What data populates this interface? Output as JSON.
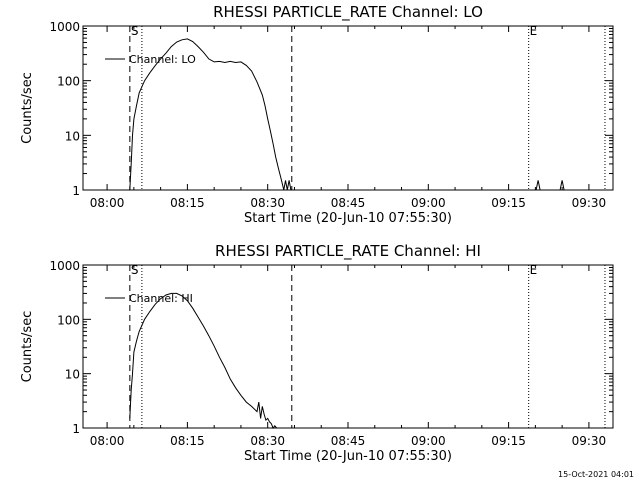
{
  "chart_data": [
    {
      "type": "line",
      "title": "RHESSI PARTICLE_RATE Channel: LO",
      "xlabel": "Start Time (20-Jun-10 07:55:30)",
      "ylabel": "Counts/sec",
      "yscale": "log",
      "ylim": [
        1,
        1000
      ],
      "xlim": [
        "07:55:30",
        "09:34:30"
      ],
      "x_ticks": [
        "08:00",
        "08:15",
        "08:30",
        "08:45",
        "09:00",
        "09:15",
        "09:30"
      ],
      "y_ticks": [
        "1",
        "10",
        "100",
        "1000"
      ],
      "legend": "top-left",
      "markers": [
        {
          "label": "S",
          "time": "08:04:15",
          "style": "dashed"
        },
        {
          "label": "",
          "time": "08:06:30",
          "style": "dotted"
        },
        {
          "label": "",
          "time": "08:34:30",
          "style": "dashed"
        },
        {
          "label": "E",
          "time": "09:18:45",
          "style": "dotted"
        },
        {
          "label": "",
          "time": "09:33:00",
          "style": "dotted"
        }
      ],
      "series": [
        {
          "name": "Channel: LO",
          "x": [
            "08:04:15",
            "08:04:30",
            "08:04:45",
            "08:05:00",
            "08:05:30",
            "08:06:00",
            "08:07:00",
            "08:08:00",
            "08:09:00",
            "08:10:00",
            "08:11:00",
            "08:12:00",
            "08:13:00",
            "08:14:00",
            "08:15:00",
            "08:16:00",
            "08:17:00",
            "08:18:00",
            "08:19:00",
            "08:20:00",
            "08:21:00",
            "08:22:00",
            "08:23:00",
            "08:24:00",
            "08:25:00",
            "08:26:00",
            "08:27:00",
            "08:28:00",
            "08:29:00",
            "08:29:30",
            "08:30:00",
            "08:30:30",
            "08:31:00",
            "08:31:30",
            "08:32:00",
            "08:32:30",
            "08:33:00",
            "08:33:20",
            "08:33:40",
            "08:34:00",
            "08:34:20",
            "08:34:40"
          ],
          "y": [
            1,
            3,
            10,
            20,
            35,
            60,
            100,
            140,
            190,
            250,
            320,
            420,
            510,
            560,
            580,
            520,
            420,
            330,
            250,
            220,
            225,
            215,
            225,
            215,
            220,
            190,
            150,
            95,
            55,
            35,
            20,
            12,
            7,
            4,
            2.5,
            1.6,
            1,
            1.5,
            1,
            1.5,
            1,
            1
          ]
        }
      ],
      "spikes": [
        {
          "x": "09:20:30",
          "y": 1.5
        },
        {
          "x": "09:25:00",
          "y": 1.5
        }
      ]
    },
    {
      "type": "line",
      "title": "RHESSI PARTICLE_RATE Channel: HI",
      "xlabel": "Start Time (20-Jun-10 07:55:30)",
      "ylabel": "Counts/sec",
      "yscale": "log",
      "ylim": [
        1,
        1000
      ],
      "xlim": [
        "07:55:30",
        "09:34:30"
      ],
      "x_ticks": [
        "08:00",
        "08:15",
        "08:30",
        "08:45",
        "09:00",
        "09:15",
        "09:30"
      ],
      "y_ticks": [
        "1",
        "10",
        "100",
        "1000"
      ],
      "legend": "top-left",
      "markers": [
        {
          "label": "S",
          "time": "08:04:15",
          "style": "dashed"
        },
        {
          "label": "",
          "time": "08:06:30",
          "style": "dotted"
        },
        {
          "label": "",
          "time": "08:34:30",
          "style": "dashed"
        },
        {
          "label": "E",
          "time": "09:18:45",
          "style": "dotted"
        },
        {
          "label": "",
          "time": "09:33:00",
          "style": "dotted"
        }
      ],
      "series": [
        {
          "name": "Channel: HI",
          "x": [
            "08:04:15",
            "08:04:30",
            "08:04:45",
            "08:05:00",
            "08:05:30",
            "08:06:00",
            "08:07:00",
            "08:08:00",
            "08:09:00",
            "08:10:00",
            "08:11:00",
            "08:12:00",
            "08:13:00",
            "08:14:00",
            "08:15:00",
            "08:16:00",
            "08:17:00",
            "08:18:00",
            "08:19:00",
            "08:20:00",
            "08:21:00",
            "08:22:00",
            "08:23:00",
            "08:24:00",
            "08:25:00",
            "08:26:00",
            "08:27:00",
            "08:28:00",
            "08:28:20",
            "08:28:40",
            "08:29:00",
            "08:29:20",
            "08:29:40",
            "08:30:00",
            "08:30:20",
            "08:30:40",
            "08:31:00",
            "08:31:20",
            "08:31:40"
          ],
          "y": [
            1.5,
            5,
            10,
            25,
            40,
            60,
            100,
            140,
            190,
            240,
            280,
            300,
            300,
            270,
            220,
            160,
            110,
            75,
            50,
            32,
            20,
            13,
            8,
            5.5,
            4,
            3,
            2.5,
            2,
            3,
            1.5,
            2.5,
            1.8,
            1.4,
            1.5,
            1.3,
            1.2,
            1,
            1.1,
            1
          ]
        }
      ],
      "spikes": []
    }
  ],
  "footer": {
    "timestamp": "15-Oct-2021 04:01"
  }
}
